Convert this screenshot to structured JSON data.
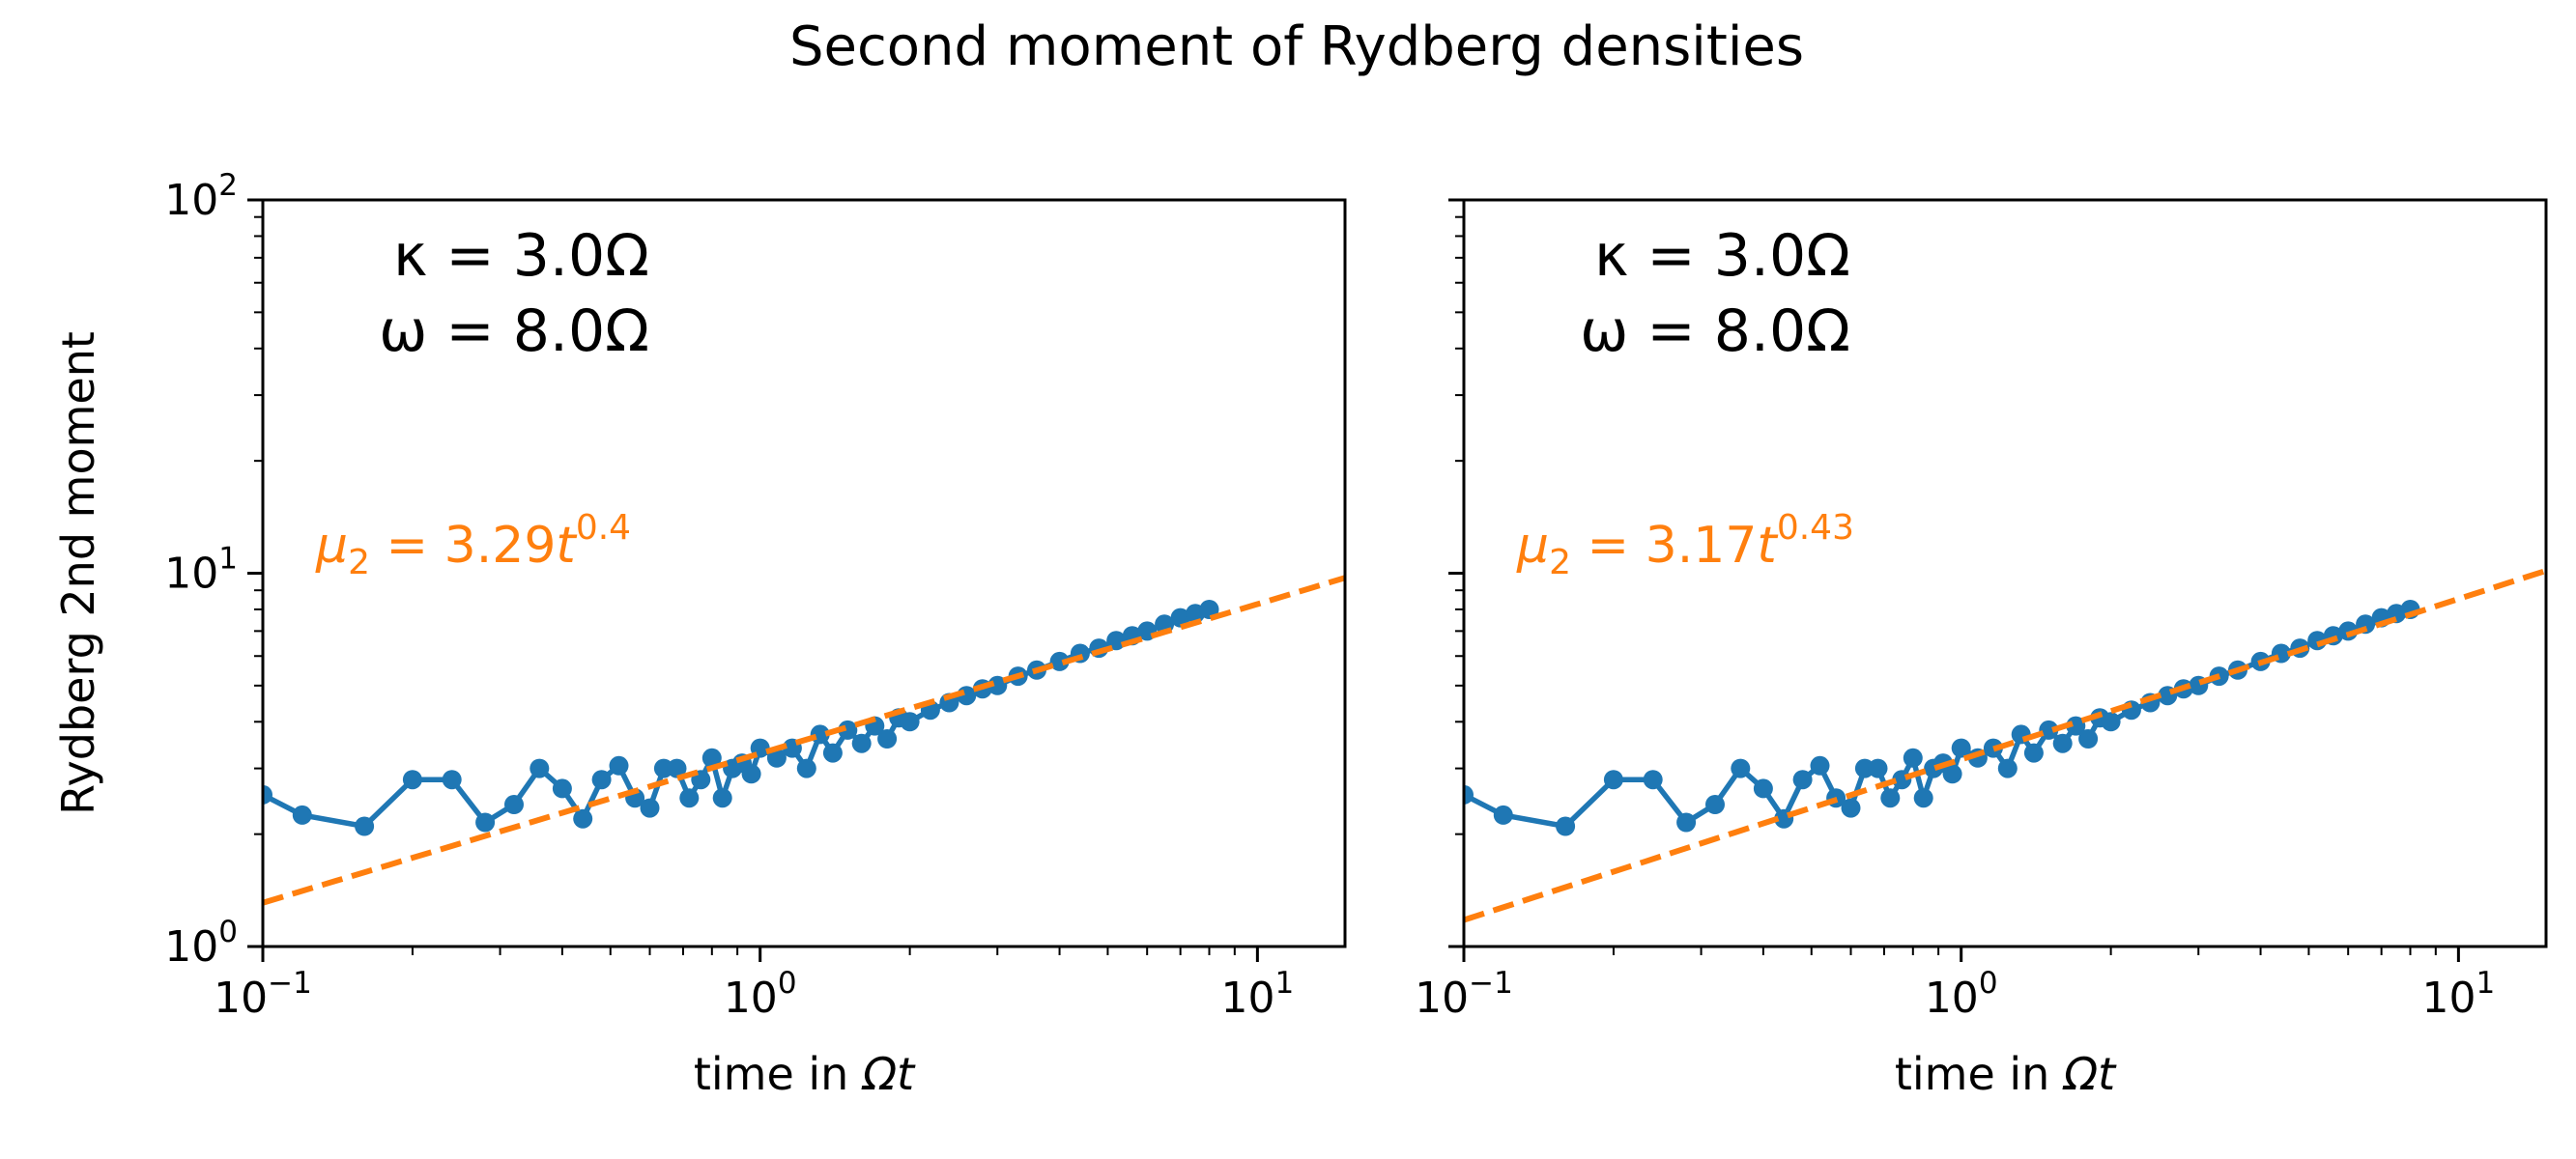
{
  "figure_title": "Second moment of Rydberg densities",
  "colors": {
    "data": "#1f77b4",
    "fit": "#ff7f0e",
    "axis": "#000000",
    "background": "#ffffff"
  },
  "chart_data": [
    {
      "type": "line",
      "panel": "left",
      "xscale": "log",
      "yscale": "log",
      "xlim": [
        0.1,
        15
      ],
      "ylim": [
        1,
        100
      ],
      "xlabel_text": "time in ",
      "xlabel_math": "Ωt",
      "ylabel": "Rydberg 2nd moment",
      "x_tick_labels": [
        {
          "base": "10",
          "exp": "−1"
        },
        {
          "base": "10",
          "exp": "0"
        },
        {
          "base": "10",
          "exp": "1"
        }
      ],
      "y_tick_labels": [
        {
          "base": "10",
          "exp": "0"
        },
        {
          "base": "10",
          "exp": "1"
        },
        {
          "base": "10",
          "exp": "2"
        }
      ],
      "param_lines": [
        "κ = 3.0Ω",
        "ω = 8.0Ω"
      ],
      "fit_label": {
        "lhs": "μ",
        "sub": "2",
        "rhs": " = 3.29",
        "var": "t",
        "exp": "0.4"
      },
      "fit": {
        "name": "fit",
        "style": "dashed",
        "a": 3.29,
        "b": 0.4
      },
      "data_series": {
        "name": "Rydberg 2nd moment",
        "x": [
          0.1,
          0.12,
          0.16,
          0.2,
          0.24,
          0.28,
          0.32,
          0.36,
          0.4,
          0.44,
          0.48,
          0.52,
          0.56,
          0.6,
          0.64,
          0.68,
          0.72,
          0.76,
          0.8,
          0.84,
          0.88,
          0.92,
          0.96,
          1.0,
          1.08,
          1.16,
          1.24,
          1.32,
          1.4,
          1.5,
          1.6,
          1.7,
          1.8,
          1.9,
          2.0,
          2.2,
          2.4,
          2.6,
          2.8,
          3.0,
          3.3,
          3.6,
          4.0,
          4.4,
          4.8,
          5.2,
          5.6,
          6.0,
          6.5,
          7.0,
          7.5,
          8.0
        ],
        "y": [
          2.55,
          2.25,
          2.1,
          2.8,
          2.8,
          2.15,
          2.4,
          3.0,
          2.65,
          2.2,
          2.8,
          3.05,
          2.5,
          2.35,
          3.0,
          3.0,
          2.5,
          2.8,
          3.2,
          2.5,
          3.0,
          3.1,
          2.9,
          3.4,
          3.2,
          3.4,
          3.0,
          3.7,
          3.3,
          3.8,
          3.5,
          3.9,
          3.6,
          4.1,
          4.0,
          4.3,
          4.5,
          4.7,
          4.9,
          5.0,
          5.3,
          5.5,
          5.8,
          6.1,
          6.3,
          6.6,
          6.8,
          7.0,
          7.3,
          7.6,
          7.8,
          8.0
        ]
      }
    },
    {
      "type": "line",
      "panel": "right",
      "xscale": "log",
      "yscale": "log",
      "xlim": [
        0.1,
        15
      ],
      "ylim": [
        1,
        100
      ],
      "xlabel_text": "time in ",
      "xlabel_math": "Ωt",
      "ylabel": "",
      "x_tick_labels": [
        {
          "base": "10",
          "exp": "−1"
        },
        {
          "base": "10",
          "exp": "0"
        },
        {
          "base": "10",
          "exp": "1"
        }
      ],
      "y_tick_labels": [],
      "param_lines": [
        "κ = 3.0Ω",
        "ω = 8.0Ω"
      ],
      "fit_label": {
        "lhs": "μ",
        "sub": "2",
        "rhs": " = 3.17",
        "var": "t",
        "exp": "0.43"
      },
      "fit": {
        "name": "fit",
        "style": "dashed",
        "a": 3.17,
        "b": 0.43
      },
      "data_series": {
        "name": "Rydberg 2nd moment",
        "x": [
          0.1,
          0.12,
          0.16,
          0.2,
          0.24,
          0.28,
          0.32,
          0.36,
          0.4,
          0.44,
          0.48,
          0.52,
          0.56,
          0.6,
          0.64,
          0.68,
          0.72,
          0.76,
          0.8,
          0.84,
          0.88,
          0.92,
          0.96,
          1.0,
          1.08,
          1.16,
          1.24,
          1.32,
          1.4,
          1.5,
          1.6,
          1.7,
          1.8,
          1.9,
          2.0,
          2.2,
          2.4,
          2.6,
          2.8,
          3.0,
          3.3,
          3.6,
          4.0,
          4.4,
          4.8,
          5.2,
          5.6,
          6.0,
          6.5,
          7.0,
          7.5,
          8.0
        ],
        "y": [
          2.55,
          2.25,
          2.1,
          2.8,
          2.8,
          2.15,
          2.4,
          3.0,
          2.65,
          2.2,
          2.8,
          3.05,
          2.5,
          2.35,
          3.0,
          3.0,
          2.5,
          2.8,
          3.2,
          2.5,
          3.0,
          3.1,
          2.9,
          3.4,
          3.2,
          3.4,
          3.0,
          3.7,
          3.3,
          3.8,
          3.5,
          3.9,
          3.6,
          4.1,
          4.0,
          4.3,
          4.5,
          4.7,
          4.9,
          5.0,
          5.3,
          5.5,
          5.8,
          6.1,
          6.3,
          6.6,
          6.8,
          7.0,
          7.3,
          7.6,
          7.8,
          8.0
        ]
      }
    }
  ]
}
